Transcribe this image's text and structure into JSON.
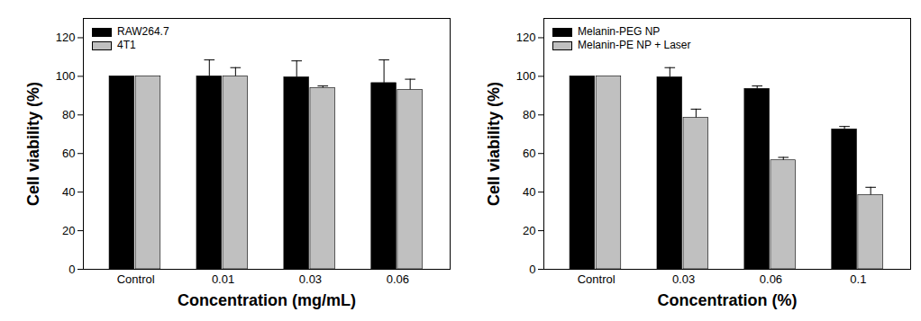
{
  "chart_data": [
    {
      "type": "bar",
      "categories": [
        "Control",
        "0.01",
        "0.03",
        "0.06"
      ],
      "xlabel": "Concentration (mg/mL)",
      "ylabel": "Cell viability (%)",
      "ylim": [
        0,
        130
      ],
      "yticks": [
        0,
        20,
        40,
        60,
        80,
        100,
        120
      ],
      "legend": "upper left",
      "series": [
        {
          "name": "RAW264.7",
          "color": "#000000",
          "values": [
            100,
            100,
            99.5,
            96.5
          ],
          "errors": [
            0,
            8.5,
            8.5,
            12
          ]
        },
        {
          "name": "4T1",
          "color": "#c0c0c0",
          "values": [
            100,
            100,
            94,
            93
          ],
          "errors": [
            0,
            4.5,
            1,
            5.5
          ]
        }
      ]
    },
    {
      "type": "bar",
      "categories": [
        "Control",
        "0.03",
        "0.06",
        "0.1"
      ],
      "xlabel": "Concentration (%)",
      "ylabel": "Cell viability (%)",
      "ylim": [
        0,
        130
      ],
      "yticks": [
        0,
        20,
        40,
        60,
        80,
        100,
        120
      ],
      "legend": "upper left",
      "series": [
        {
          "name": "Melanin-PEG NP",
          "color": "#000000",
          "values": [
            100,
            99.5,
            93.5,
            72.5
          ],
          "errors": [
            0,
            5,
            1.5,
            1.5
          ]
        },
        {
          "name": "Melanin-PE NP + Laser",
          "color": "#c0c0c0",
          "values": [
            100,
            78.5,
            56.5,
            38.5
          ],
          "errors": [
            0,
            4.5,
            1.5,
            4
          ]
        }
      ]
    }
  ]
}
